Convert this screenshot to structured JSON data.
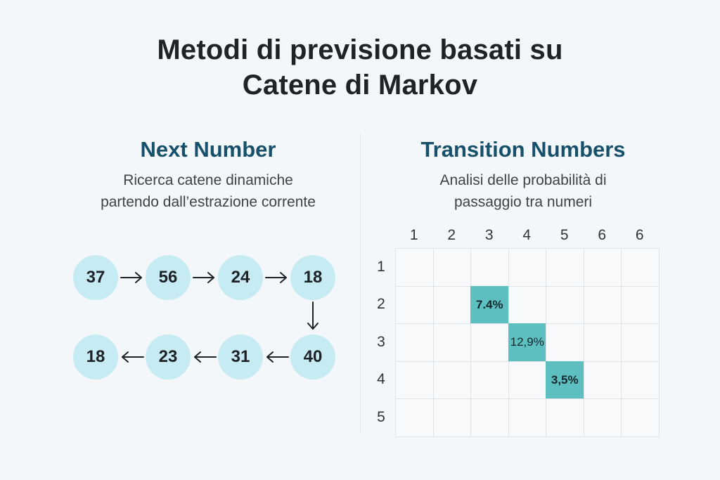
{
  "title": {
    "line1": "Metodi di previsione basati su",
    "line2": "Catene di Markov"
  },
  "left_panel": {
    "title": "Next Number",
    "subtitle_line1": "Ricerca catene dinamiche",
    "subtitle_line2": "partendo dall’estrazione corrente",
    "chain_top": [
      "37",
      "56",
      "24",
      "18"
    ],
    "chain_bottom": [
      "18",
      "23",
      "31",
      "40"
    ]
  },
  "right_panel": {
    "title": "Transition Numbers",
    "subtitle_line1": "Analisi delle probabilità di",
    "subtitle_line2": "passaggio tra numeri",
    "column_labels": [
      "1",
      "2",
      "3",
      "4",
      "5",
      "6",
      "6"
    ],
    "row_labels": [
      "1",
      "2",
      "3",
      "4",
      "5"
    ],
    "highlights": [
      {
        "row": 2,
        "col": 3,
        "value": "7.4%",
        "bold": true
      },
      {
        "row": 3,
        "col": 4,
        "value": "12,9%",
        "bold": false
      },
      {
        "row": 4,
        "col": 5,
        "value": "3,5%",
        "bold": true
      }
    ],
    "highlight_color": "#5ebfc0"
  },
  "colors": {
    "node_fill": "#c6ebf2",
    "panel_title": "#16506a",
    "background": "#f4f7fa"
  }
}
